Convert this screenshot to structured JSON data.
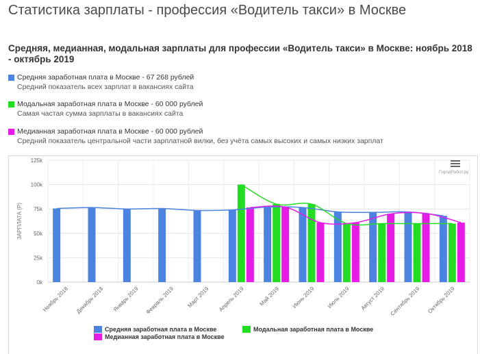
{
  "header": {
    "title": "Статистика зарплаты - профессия «Водитель такси» в Москве",
    "subtitle": "Средняя, медианная, модальная зарплаты для профессии «Водитель такси» в Москве: ноябрь 2018 - октябрь 2019"
  },
  "legend": [
    {
      "label": "Средняя заработная плата в Москве - 67 268 рублей",
      "desc": "Средний показатель всех зарплат в вакансиях сайта",
      "color": "#4c82e0"
    },
    {
      "label": "Модальная заработная плата в Москве - 60 000 рублей",
      "desc": "Самая частая сумма зарплаты в вакансиях сайта",
      "color": "#22dd22"
    },
    {
      "label": "Медианная заработная плата в Москве - 60 000 рублей",
      "desc": "Средний показатель центральной части зарплатной вилки, без учёта самых высоких и самых низких зарплат",
      "color": "#e61be6"
    }
  ],
  "watermark": "ГородРабот.ру",
  "chart_data": {
    "type": "bar",
    "categories": [
      "Ноябрь 2018",
      "Декабрь 2018",
      "Январь 2019",
      "Февраль 2019",
      "Март 2019",
      "Апрель 2019",
      "Май 2019",
      "Июнь 2019",
      "Июль 2019",
      "Август 2019",
      "Сентябрь 2019",
      "Октябрь 2019"
    ],
    "ylabel": "ЗАРПЛАТА (Р)",
    "ylim": [
      0,
      125000
    ],
    "yticks": [
      0,
      25000,
      50000,
      75000,
      100000,
      125000
    ],
    "ytick_labels": [
      "0k",
      "25k",
      "50k",
      "75k",
      "100k",
      "125k"
    ],
    "grid": true,
    "legend_position": "bottom",
    "series": [
      {
        "name": "Средняя заработная плата в Москве",
        "color": "#4c82e0",
        "values": [
          75500,
          76500,
          75000,
          75500,
          73500,
          74000,
          77000,
          76500,
          72000,
          71500,
          72000,
          68000
        ]
      },
      {
        "name": "Модальная заработная плата в Москве",
        "color": "#22dd22",
        "values": [
          null,
          null,
          null,
          null,
          null,
          100000,
          80000,
          80000,
          60000,
          60000,
          60000,
          60000
        ]
      },
      {
        "name": "Медианная заработная плата в Москве",
        "color": "#e61be6",
        "values": [
          null,
          null,
          null,
          null,
          null,
          76500,
          77000,
          61000,
          61000,
          70000,
          70500,
          61000
        ]
      }
    ]
  }
}
